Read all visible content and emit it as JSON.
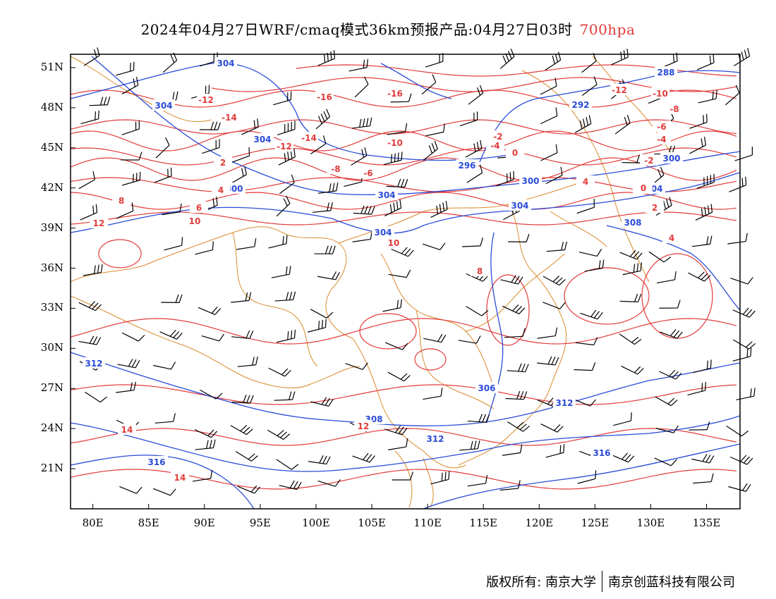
{
  "title": {
    "main": "2024年04月27日WRF/cmaq模式36km预报产品:04月27日03时",
    "level": "700hpa",
    "level_color": "#e23b3b"
  },
  "map": {
    "lon_range": [
      78,
      138
    ],
    "lat_range": [
      18,
      52
    ],
    "lat_labels": [
      "51N",
      "48N",
      "45N",
      "42N",
      "39N",
      "36N",
      "33N",
      "30N",
      "27N",
      "24N",
      "21N"
    ],
    "lon_labels": [
      "80E",
      "85E",
      "90E",
      "95E",
      "100E",
      "105E",
      "110E",
      "115E",
      "120E",
      "125E",
      "130E",
      "135E"
    ],
    "colors": {
      "height_contour": "#2a4bd7",
      "temperature_contour": "#e23b3b",
      "boundaries": "#d98a2b",
      "wind_barbs": "#000000"
    },
    "height_labels": [
      "304",
      "304",
      "304",
      "300",
      "304",
      "304",
      "296",
      "300",
      "304",
      "292",
      "288",
      "300",
      "304",
      "308",
      "312",
      "308",
      "306",
      "312",
      "312",
      "316",
      "316"
    ],
    "temperature_labels": [
      "-16",
      "-16",
      "-14",
      "-14",
      "-12",
      "-12",
      "-10",
      "-8",
      "-6",
      "-4",
      "-2",
      "0",
      "2",
      "4",
      "6",
      "8",
      "10",
      "12",
      "14",
      "-12",
      "-10",
      "-8",
      "-6",
      "-4",
      "-2",
      "0",
      "4",
      "2",
      "0",
      "4",
      "8",
      "10",
      "12",
      "14"
    ]
  },
  "footer": {
    "copyright": "版权所有: 南京大学",
    "company": "南京创蓝科技有限公司"
  }
}
